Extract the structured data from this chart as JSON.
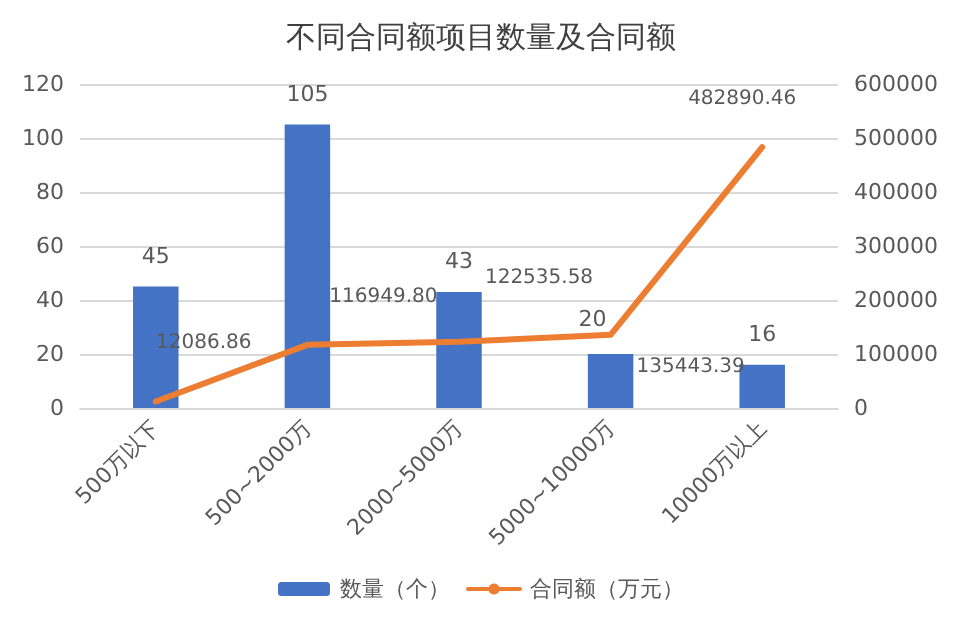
{
  "chart_data": {
    "type": "bar",
    "title": "不同合同额项目数量及合同额",
    "categories": [
      "500万以下",
      "500~2000万",
      "2000~5000万",
      "5000~10000万",
      "10000万以上"
    ],
    "series": [
      {
        "name": "数量（个）",
        "color": "#4472c4",
        "values": [
          45,
          105,
          43,
          20,
          16
        ],
        "value_labels": [
          "45",
          "105",
          "43",
          "20",
          "16"
        ]
      },
      {
        "name": "合同额（万元）",
        "type": "line",
        "axis": "y2",
        "color": "#ed7d31",
        "values": [
          12086.86,
          116949.8,
          122535.58,
          135443.39,
          482890.46
        ],
        "value_labels": [
          "12086.86",
          "116949.80",
          "122535.58",
          "135443.39",
          "482890.46"
        ]
      }
    ],
    "ylim": [
      0,
      120
    ],
    "yticks": [
      0,
      20,
      40,
      60,
      80,
      100,
      120
    ],
    "y2lim": [
      0,
      600000
    ],
    "y2ticks": [
      0,
      100000,
      200000,
      300000,
      400000,
      500000,
      600000
    ],
    "grid": "y",
    "legend": "bottom",
    "marker": "none",
    "line_style": "solid"
  }
}
